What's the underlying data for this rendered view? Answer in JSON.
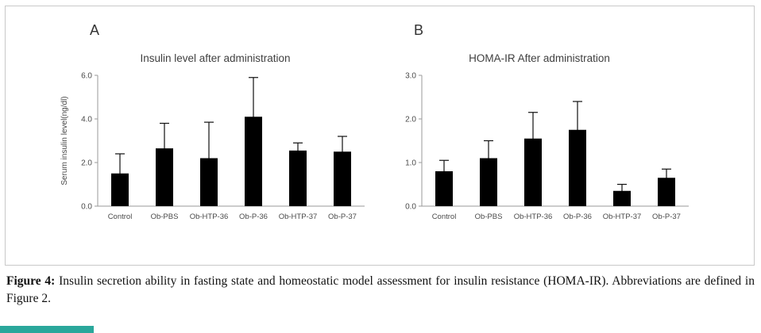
{
  "figure": {
    "caption_label": "Figure 4:",
    "caption_text": " Insulin secretion ability in fasting state and homeostatic model assessment for insulin resistance (HOMA-IR). Abbreviations are defined in Figure 2."
  },
  "accent_color": "#2aa79b",
  "chart_data": [
    {
      "type": "bar",
      "panel_label": "A",
      "title": "Insulin level after administration",
      "xlabel": "",
      "ylabel": "Serum insulin level(ng/dl)",
      "categories": [
        "Control",
        "Ob-PBS",
        "Ob-HTP-36",
        "Ob-P-36",
        "Ob-HTP-37",
        "Ob-P-37"
      ],
      "values": [
        1.5,
        2.65,
        2.2,
        4.1,
        2.55,
        2.5
      ],
      "errors_upper": [
        0.9,
        1.15,
        1.65,
        1.8,
        0.35,
        0.7
      ],
      "ylim": [
        0,
        6
      ],
      "yticks": [
        0.0,
        2.0,
        4.0,
        6.0
      ],
      "grid": false,
      "legend": "none",
      "bar_color": "#000000"
    },
    {
      "type": "bar",
      "panel_label": "B",
      "title": "HOMA-IR After administration",
      "xlabel": "",
      "ylabel": "",
      "categories": [
        "Control",
        "Ob-PBS",
        "Ob-HTP-36",
        "Ob-P-36",
        "Ob-HTP-37",
        "Ob-P-37"
      ],
      "values": [
        0.8,
        1.1,
        1.55,
        1.75,
        0.35,
        0.65
      ],
      "errors_upper": [
        0.25,
        0.4,
        0.6,
        0.65,
        0.15,
        0.2
      ],
      "ylim": [
        0,
        3
      ],
      "yticks": [
        0.0,
        1.0,
        2.0,
        3.0
      ],
      "grid": false,
      "legend": "none",
      "bar_color": "#000000"
    }
  ]
}
